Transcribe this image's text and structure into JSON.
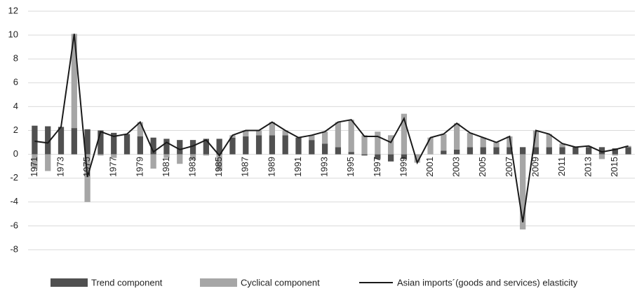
{
  "chart_data": {
    "type": "bar",
    "stacked": true,
    "categories": [
      "1971",
      null,
      "1973",
      null,
      "1975",
      null,
      "1977",
      null,
      "1979",
      null,
      "1981",
      null,
      "1983",
      null,
      "1985",
      null,
      "1987",
      null,
      "1989",
      null,
      "1991",
      null,
      "1993",
      null,
      "1995",
      null,
      "1997",
      null,
      "1999",
      null,
      "2001",
      null,
      "2003",
      null,
      "2005",
      null,
      "2007",
      null,
      "2009",
      null,
      "2011",
      null,
      "2013",
      null,
      "2015",
      null
    ],
    "series": [
      {
        "name": "Trend component",
        "color": "#505050",
        "values": [
          2.4,
          2.35,
          2.3,
          2.2,
          2.1,
          2.0,
          1.8,
          1.7,
          1.5,
          1.4,
          1.3,
          1.2,
          1.2,
          1.3,
          1.3,
          1.4,
          1.5,
          1.6,
          1.6,
          1.6,
          1.4,
          1.2,
          0.9,
          0.6,
          0.2,
          -0.1,
          -0.4,
          -0.6,
          -0.4,
          0.0,
          0.0,
          0.3,
          0.4,
          0.6,
          0.6,
          0.6,
          0.6,
          0.6,
          0.6,
          0.6,
          0.6,
          0.6,
          0.6,
          0.6,
          0.5,
          0.6
        ]
      },
      {
        "name": "Cyclical component",
        "color": "#a6a6a6",
        "values": [
          -1.2,
          -1.4,
          0.0,
          7.9,
          -4.0,
          -0.1,
          -0.3,
          0.0,
          1.2,
          -1.2,
          -0.3,
          -0.8,
          -0.5,
          -0.1,
          -1.4,
          0.2,
          0.5,
          0.4,
          1.1,
          0.4,
          0.0,
          0.4,
          1.0,
          2.1,
          2.7,
          1.6,
          1.9,
          1.6,
          3.4,
          -0.7,
          1.4,
          1.4,
          2.2,
          1.2,
          0.8,
          0.4,
          0.9,
          -6.3,
          1.4,
          1.1,
          0.3,
          0.0,
          0.1,
          -0.4,
          -0.1,
          0.1
        ]
      },
      {
        "name": "Asian imports´(goods and services) elasticity",
        "type": "line",
        "color": "#1a1a1a",
        "values": [
          1.1,
          0.95,
          2.3,
          10.1,
          -1.9,
          1.9,
          1.5,
          1.7,
          2.7,
          0.2,
          1.0,
          0.4,
          0.7,
          1.2,
          -0.1,
          1.6,
          2.0,
          2.0,
          2.7,
          2.0,
          1.4,
          1.6,
          1.9,
          2.7,
          2.9,
          1.5,
          1.5,
          1.0,
          3.0,
          -0.7,
          1.4,
          1.7,
          2.6,
          1.8,
          1.4,
          1.0,
          1.5,
          -5.7,
          2.0,
          1.7,
          0.9,
          0.6,
          0.7,
          0.2,
          0.4,
          0.7
        ]
      }
    ],
    "ylim": [
      -8,
      12
    ],
    "yticks": [
      -8,
      -6,
      -4,
      -2,
      0,
      2,
      4,
      6,
      8,
      10,
      12
    ],
    "grid": true
  }
}
